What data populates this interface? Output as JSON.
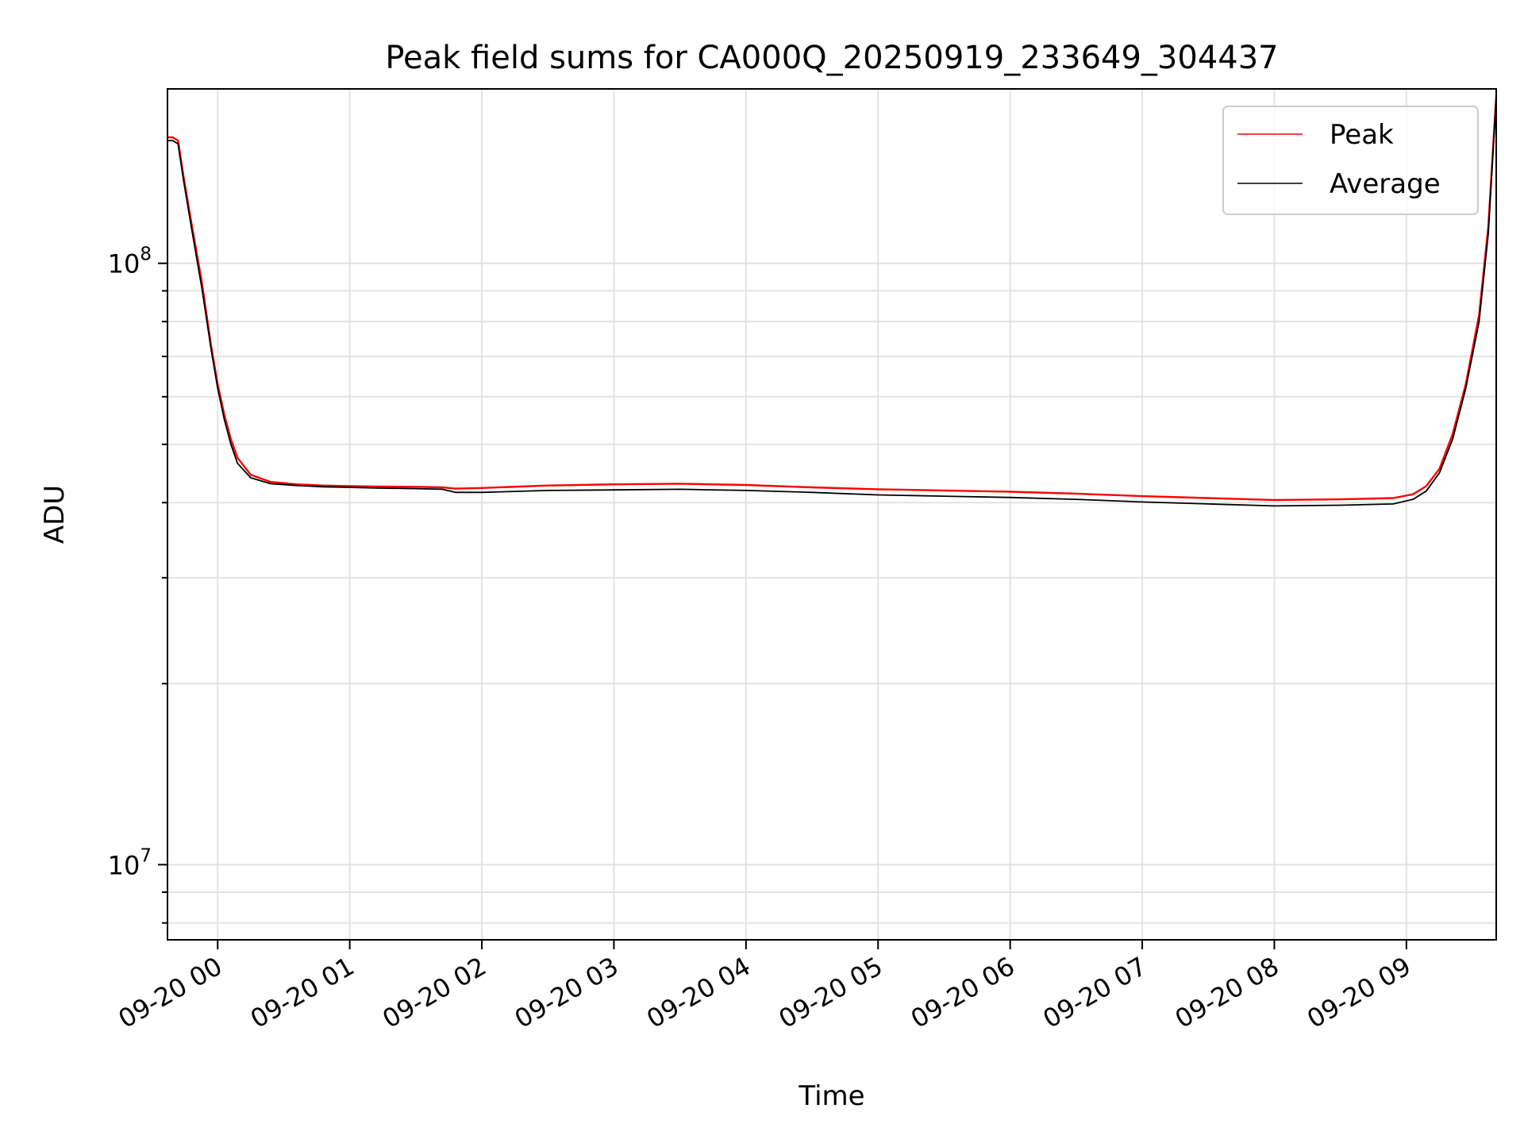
{
  "chart_data": {
    "type": "line",
    "title": "Peak field sums for CA000Q_20250919_233649_304437",
    "xlabel": "Time",
    "ylabel": "ADU",
    "yscale": "log",
    "ylim": [
      7500000,
      195000000
    ],
    "xlim_hours": [
      -0.38,
      9.68
    ],
    "grid": true,
    "legend_position": "top-right",
    "x_ticks": [
      {
        "h": 0,
        "label": "09-20 00"
      },
      {
        "h": 1,
        "label": "09-20 01"
      },
      {
        "h": 2,
        "label": "09-20 02"
      },
      {
        "h": 3,
        "label": "09-20 03"
      },
      {
        "h": 4,
        "label": "09-20 04"
      },
      {
        "h": 5,
        "label": "09-20 05"
      },
      {
        "h": 6,
        "label": "09-20 06"
      },
      {
        "h": 7,
        "label": "09-20 07"
      },
      {
        "h": 8,
        "label": "09-20 08"
      },
      {
        "h": 9,
        "label": "09-20 09"
      }
    ],
    "y_major_ticks": [
      {
        "value": 10000000,
        "base": "10",
        "exp": "7"
      },
      {
        "value": 100000000,
        "base": "10",
        "exp": "8"
      }
    ],
    "series": [
      {
        "name": "Peak",
        "color": "#ff0000",
        "x_hours": [
          -0.38,
          -0.34,
          -0.3,
          -0.26,
          -0.2,
          -0.12,
          -0.05,
          0.0,
          0.05,
          0.1,
          0.15,
          0.25,
          0.4,
          0.6,
          0.8,
          1.0,
          1.2,
          1.5,
          1.7,
          1.8,
          2.0,
          2.5,
          3.0,
          3.5,
          4.0,
          4.5,
          5.0,
          5.5,
          6.0,
          6.5,
          7.0,
          7.5,
          8.0,
          8.5,
          8.9,
          9.05,
          9.15,
          9.25,
          9.35,
          9.45,
          9.55,
          9.62,
          9.68
        ],
        "y": [
          162000000,
          162000000,
          160000000,
          140000000,
          117000000,
          93000000,
          73000000,
          63000000,
          56000000,
          51000000,
          47500000,
          44500000,
          43300000,
          42900000,
          42700000,
          42600000,
          42550000,
          42500000,
          42400000,
          42200000,
          42300000,
          42700000,
          42900000,
          43000000,
          42800000,
          42400000,
          42100000,
          41900000,
          41700000,
          41400000,
          41000000,
          40700000,
          40400000,
          40500000,
          40700000,
          41300000,
          42600000,
          45500000,
          52000000,
          63000000,
          82000000,
          115000000,
          190000000
        ]
      },
      {
        "name": "Average",
        "color": "#000000",
        "x_hours": [
          -0.38,
          -0.34,
          -0.3,
          -0.26,
          -0.2,
          -0.12,
          -0.05,
          0.0,
          0.05,
          0.1,
          0.15,
          0.25,
          0.4,
          0.6,
          0.8,
          1.0,
          1.2,
          1.5,
          1.7,
          1.8,
          2.0,
          2.5,
          3.0,
          3.5,
          4.0,
          4.5,
          5.0,
          5.5,
          6.0,
          6.5,
          7.0,
          7.5,
          8.0,
          8.5,
          8.9,
          9.05,
          9.15,
          9.25,
          9.35,
          9.45,
          9.55,
          9.62,
          9.68
        ],
        "y": [
          160000000,
          160000000,
          158000000,
          138000000,
          115000000,
          91000000,
          72000000,
          62000000,
          55000000,
          50000000,
          46500000,
          44000000,
          43000000,
          42700000,
          42500000,
          42400000,
          42300000,
          42200000,
          42100000,
          41600000,
          41600000,
          41900000,
          42000000,
          42100000,
          41900000,
          41600000,
          41200000,
          41000000,
          40800000,
          40500000,
          40100000,
          39800000,
          39500000,
          39600000,
          39800000,
          40500000,
          41800000,
          44800000,
          51000000,
          62000000,
          80000000,
          112000000,
          188000000
        ]
      }
    ]
  }
}
